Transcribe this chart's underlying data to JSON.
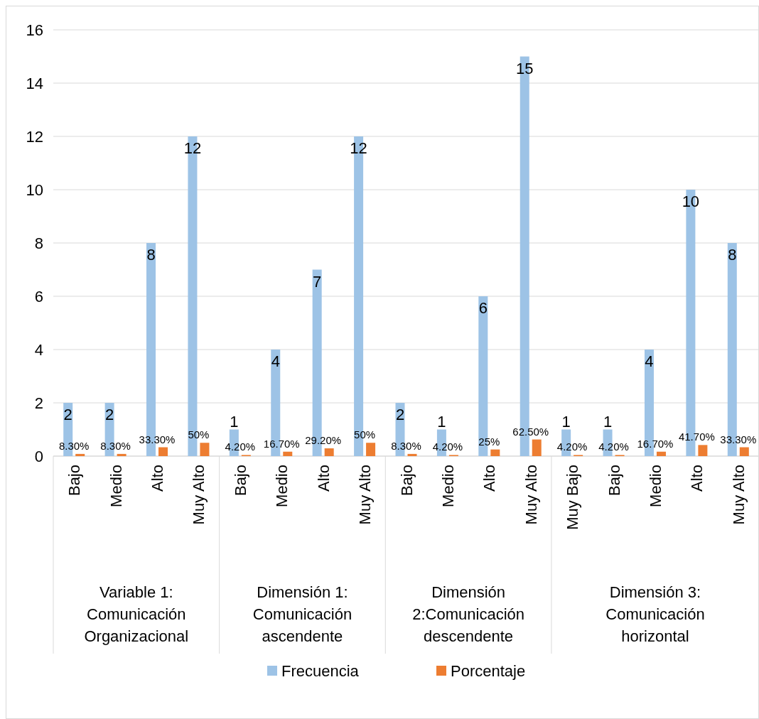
{
  "chart_data": {
    "type": "bar",
    "categories": [
      "Bajo",
      "Medio",
      "Alto",
      "Muy Alto",
      "Bajo",
      "Medio",
      "Alto",
      "Muy Alto",
      "Bajo",
      "Medio",
      "Alto",
      "Muy Alto",
      "Muy Bajo",
      "Bajo",
      "Medio",
      "Alto",
      "Muy Alto"
    ],
    "series": [
      {
        "name": "Frecuencia",
        "color": "#9dc3e6",
        "values": [
          2,
          2,
          8,
          12,
          1,
          4,
          7,
          12,
          2,
          1,
          6,
          15,
          1,
          1,
          4,
          10,
          8
        ],
        "value_labels": [
          "2",
          "2",
          "8",
          "12",
          "1",
          "4",
          "7",
          "12",
          "2",
          "1",
          "6",
          "15",
          "1",
          "1",
          "4",
          "10",
          "8"
        ]
      },
      {
        "name": "Porcentaje",
        "color": "#ed7d31",
        "values": [
          0.083,
          0.083,
          0.333,
          0.5,
          0.042,
          0.167,
          0.292,
          0.5,
          0.083,
          0.042,
          0.25,
          0.625,
          0.042,
          0.042,
          0.167,
          0.417,
          0.333
        ],
        "value_labels": [
          "8.30%",
          "8.30%",
          "33.30%",
          "50%",
          "4.20%",
          "16.70%",
          "29.20%",
          "50%",
          "8.30%",
          "4.20%",
          "25%",
          "62.50%",
          "4.20%",
          "4.20%",
          "16.70%",
          "41.70%",
          "33.30%"
        ]
      }
    ],
    "annotations": [
      "Variable 1: Comunicación Organizacional",
      "Dimensión 1: Comunicación ascendente",
      "Dimensión 2:Comunicación descendente",
      "Dimensión 3: Comunicación horizontal"
    ],
    "ylim": [
      0,
      16
    ],
    "yticks": [
      0,
      2,
      4,
      6,
      8,
      10,
      12,
      14,
      16
    ],
    "grid": "y",
    "legend": "bottom"
  }
}
